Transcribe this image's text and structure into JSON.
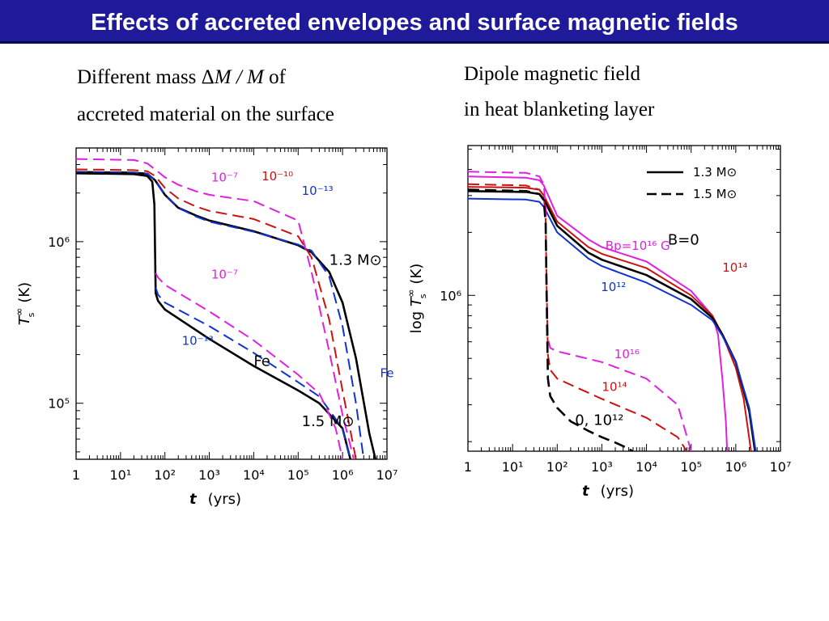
{
  "title": "Effects of accreted envelopes and surface magnetic fields",
  "captions": {
    "left_line1_a": "Different mass ",
    "left_line1_delta": "Δ",
    "left_line1_M1": "M",
    "left_line1_slash": " / ",
    "left_line1_M2": "M",
    "left_line1_b": "  of",
    "left_line2": "accreted material on the surface",
    "right_line1": "Dipole magnetic field",
    "right_line2": "in heat blanketing layer"
  },
  "colors": {
    "title_bg": "#1f1a99",
    "title_text": "#ffffff",
    "black": "#000000",
    "red": "#cc1111",
    "blue": "#1133cc",
    "magenta": "#e020e0"
  },
  "chart_data": [
    {
      "type": "line",
      "xlabel_t": "t",
      "xlabel_unit": "(yrs)",
      "ylabel_T": "T",
      "ylabel_sup": "∞",
      "ylabel_sub": "s",
      "ylabel_unit": "(K)",
      "x_scale": "log",
      "y_scale": "log",
      "xlim": [
        1,
        10000000
      ],
      "ylim": [
        45000,
        3800000
      ],
      "x_tick_labels": [
        {
          "t": "1",
          "v": 1
        },
        {
          "t": "10¹",
          "v": 10
        },
        {
          "t": "10²",
          "v": 100
        },
        {
          "t": "10³",
          "v": 1000
        },
        {
          "t": "10⁴",
          "v": 10000
        },
        {
          "t": "10⁵",
          "v": 100000
        },
        {
          "t": "10⁶",
          "v": 1000000
        },
        {
          "t": "10⁷",
          "v": 10000000
        }
      ],
      "y_tick_labels": [
        {
          "t": "10⁶",
          "v": 1000000
        },
        {
          "t": "10⁵",
          "v": 100000
        }
      ],
      "annotations": [
        {
          "text": "10⁻⁷",
          "color": "magenta",
          "x": 1100,
          "y": 2350000
        },
        {
          "text": "10⁻¹⁰",
          "color": "red",
          "x": 15000,
          "y": 2400000
        },
        {
          "text": "10⁻¹³",
          "color": "blue",
          "x": 120000,
          "y": 1950000
        },
        {
          "text": "1.3 M⊙",
          "color": "black",
          "x": 500000,
          "y": 720000
        },
        {
          "text": "10⁻⁷",
          "color": "magenta",
          "x": 1100,
          "y": 590000
        },
        {
          "text": "10⁻¹³",
          "color": "blue",
          "x": 240,
          "y": 230000
        },
        {
          "text": "Fe",
          "color": "black",
          "x": 10000,
          "y": 170000
        },
        {
          "text": "Fe",
          "color": "blue",
          "x": 7000000,
          "y": 145000
        },
        {
          "text": "1.5 M⊙",
          "color": "black",
          "x": 120000,
          "y": 72000
        }
      ],
      "series": [
        {
          "color": "black",
          "dash": false,
          "x": [
            1,
            20,
            40,
            60,
            100,
            200,
            500,
            1000,
            10000,
            100000,
            200000,
            500000,
            1000000,
            2000000,
            4000000,
            5500000
          ],
          "y": [
            2700000,
            2670000,
            2630000,
            2400000,
            1950000,
            1620000,
            1450000,
            1350000,
            1160000,
            950000,
            860000,
            650000,
            420000,
            190000,
            65000,
            45000
          ]
        },
        {
          "color": "blue",
          "dash": true,
          "x": [
            1,
            20,
            40,
            60,
            100,
            200,
            500,
            1000,
            10000,
            100000,
            200000,
            500000,
            1000000,
            2000000,
            3000000
          ],
          "y": [
            2700000,
            2670000,
            2630000,
            2400000,
            1950000,
            1620000,
            1430000,
            1330000,
            1150000,
            960000,
            880000,
            610000,
            300000,
            100000,
            45000
          ]
        },
        {
          "color": "red",
          "dash": true,
          "x": [
            1,
            20,
            40,
            60,
            100,
            200,
            500,
            1000,
            10000,
            100000,
            200000,
            500000,
            1000000,
            2000000
          ],
          "y": [
            2800000,
            2770000,
            2730000,
            2550000,
            2150000,
            1850000,
            1650000,
            1550000,
            1380000,
            1080000,
            800000,
            330000,
            120000,
            45000
          ]
        },
        {
          "color": "magenta",
          "dash": true,
          "x": [
            1,
            20,
            40,
            60,
            100,
            200,
            500,
            1000,
            10000,
            100000,
            200000,
            500000,
            1000000,
            1800000
          ],
          "y": [
            3250000,
            3200000,
            3050000,
            2800000,
            2500000,
            2250000,
            2050000,
            1950000,
            1780000,
            1350000,
            650000,
            210000,
            85000,
            45000
          ]
        },
        {
          "color": "black",
          "dash": false,
          "x": [
            1,
            20,
            40,
            52,
            58,
            60,
            62,
            70,
            100,
            1000,
            10000,
            100000,
            300000,
            1000000,
            1500000
          ],
          "y": [
            2650000,
            2620000,
            2550000,
            2350000,
            1700000,
            900000,
            480000,
            430000,
            380000,
            250000,
            170000,
            120000,
            100000,
            70000,
            45000
          ]
        },
        {
          "color": "blue",
          "dash": true,
          "x": [
            62,
            70,
            100,
            1000,
            10000,
            100000,
            300000,
            1000000,
            1500000
          ],
          "y": [
            520000,
            470000,
            420000,
            300000,
            205000,
            135000,
            110000,
            70000,
            45000
          ]
        },
        {
          "color": "magenta",
          "dash": true,
          "x": [
            62,
            70,
            100,
            1000,
            10000,
            100000,
            300000,
            700000,
            1000000
          ],
          "y": [
            640000,
            600000,
            540000,
            370000,
            245000,
            150000,
            115000,
            70000,
            45000
          ]
        }
      ]
    },
    {
      "type": "line",
      "xlabel_t": "t",
      "xlabel_unit": "(yrs)",
      "ylabel_log": "log ",
      "ylabel_T": "T",
      "ylabel_sup": "∞",
      "ylabel_sub": "s",
      "ylabel_unit": "(K)",
      "x_scale": "log",
      "y_scale": "log",
      "xlim": [
        1,
        10000000
      ],
      "ylim": [
        180000,
        5200000
      ],
      "x_tick_labels": [
        {
          "t": "1",
          "v": 1
        },
        {
          "t": "10¹",
          "v": 10
        },
        {
          "t": "10²",
          "v": 100
        },
        {
          "t": "10³",
          "v": 1000
        },
        {
          "t": "10⁴",
          "v": 10000
        },
        {
          "t": "10⁵",
          "v": 100000
        },
        {
          "t": "10⁶",
          "v": 1000000
        },
        {
          "t": "10⁷",
          "v": 10000000
        }
      ],
      "y_tick_labels": [
        {
          "t": "10⁶",
          "v": 1000000
        }
      ],
      "legend": [
        {
          "label": "1.3 M⊙",
          "dash": false
        },
        {
          "label": "1.5 M⊙",
          "dash": true
        }
      ],
      "annotations": [
        {
          "text": "Bp=10¹⁶ G",
          "color": "magenta",
          "x": 1200,
          "y": 1650000
        },
        {
          "text": "B=0",
          "color": "black",
          "x": 30000,
          "y": 1750000
        },
        {
          "text": "10¹⁴",
          "color": "red",
          "x": 500000,
          "y": 1300000
        },
        {
          "text": "10¹²",
          "color": "blue",
          "x": 950,
          "y": 1050000
        },
        {
          "text": "10¹⁶",
          "color": "magenta",
          "x": 1900,
          "y": 500000
        },
        {
          "text": "10¹⁴",
          "color": "red",
          "x": 1000,
          "y": 350000
        },
        {
          "text": "0, 10¹²",
          "color": "black",
          "x": 250,
          "y": 240000
        }
      ],
      "series": [
        {
          "color": "magenta",
          "dash": false,
          "x": [
            1,
            20,
            40,
            50,
            100,
            500,
            1000,
            10000,
            100000,
            300000,
            400000,
            500000,
            600000,
            640000
          ],
          "y": [
            3700000,
            3650000,
            3550000,
            3350000,
            2400000,
            1850000,
            1700000,
            1450000,
            1050000,
            800000,
            650000,
            400000,
            250000,
            180000
          ]
        },
        {
          "color": "red",
          "dash": false,
          "x": [
            1,
            20,
            40,
            50,
            100,
            500,
            1000,
            10000,
            100000,
            300000,
            500000,
            1000000,
            1500000,
            2200000
          ],
          "y": [
            3300000,
            3270000,
            3200000,
            3000000,
            2250000,
            1700000,
            1580000,
            1350000,
            1000000,
            800000,
            650000,
            450000,
            320000,
            180000
          ]
        },
        {
          "color": "black",
          "dash": false,
          "x": [
            1,
            20,
            40,
            50,
            100,
            500,
            1000,
            10000,
            100000,
            300000,
            500000,
            1000000,
            2000000,
            2700000
          ],
          "y": [
            3150000,
            3120000,
            3050000,
            2880000,
            2150000,
            1600000,
            1480000,
            1250000,
            960000,
            780000,
            650000,
            480000,
            280000,
            180000
          ]
        },
        {
          "color": "blue",
          "dash": false,
          "x": [
            1,
            20,
            40,
            50,
            100,
            500,
            1000,
            10000,
            100000,
            300000,
            500000,
            1000000,
            2000000,
            2800000
          ],
          "y": [
            2900000,
            2870000,
            2800000,
            2650000,
            2000000,
            1500000,
            1380000,
            1150000,
            900000,
            760000,
            640000,
            480000,
            290000,
            180000
          ]
        },
        {
          "color": "magenta",
          "dash": true,
          "x": [
            1,
            20,
            40,
            50,
            55,
            58,
            62,
            70,
            100,
            1000,
            10000,
            50000,
            100000
          ],
          "y": [
            3900000,
            3850000,
            3700000,
            3400000,
            2600000,
            1200000,
            620000,
            560000,
            540000,
            480000,
            400000,
            300000,
            180000
          ]
        },
        {
          "color": "red",
          "dash": true,
          "x": [
            1,
            20,
            40,
            50,
            55,
            58,
            62,
            70,
            100,
            1000,
            10000,
            50000,
            80000
          ],
          "y": [
            3400000,
            3350000,
            3200000,
            3000000,
            2300000,
            1100000,
            520000,
            440000,
            400000,
            320000,
            260000,
            210000,
            180000
          ]
        },
        {
          "color": "black",
          "dash": true,
          "x": [
            1,
            20,
            40,
            50,
            55,
            58,
            62,
            70,
            100,
            200,
            500,
            1000,
            2000,
            4000,
            4800
          ],
          "y": [
            3200000,
            3150000,
            3050000,
            2850000,
            2200000,
            1000000,
            400000,
            330000,
            290000,
            250000,
            225000,
            210000,
            198000,
            185000,
            180000
          ]
        }
      ]
    }
  ]
}
